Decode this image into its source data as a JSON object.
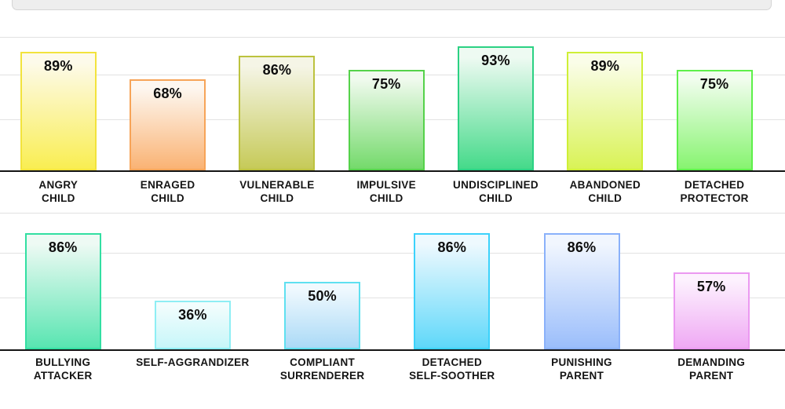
{
  "page": {
    "background": "#ffffff",
    "colors": {
      "axis_line": "#141414",
      "gridline": "#e2e2e2",
      "panel_fill": "#eeeeee",
      "panel_border": "#d5d5d5",
      "label_text": "#141414",
      "value_text": "#0d0d0d"
    }
  },
  "chart_data": [
    {
      "type": "bar",
      "title": "",
      "xlabel": "",
      "ylabel": "",
      "ylim": [
        0,
        100
      ],
      "grid": "horizontal",
      "legend": "none",
      "unit": "%",
      "categories": [
        "ANGRY CHILD",
        "ENRAGED CHILD",
        "VULNERABLE CHILD",
        "IMPULSIVE CHILD",
        "UNDISCIPLINED CHILD",
        "ABANDONED CHILD",
        "DETACHED PROTECTOR"
      ],
      "label_lines": [
        [
          "ANGRY",
          "CHILD"
        ],
        [
          "ENRAGED",
          "CHILD"
        ],
        [
          "VULNERABLE",
          "CHILD"
        ],
        [
          "IMPULSIVE",
          "CHILD"
        ],
        [
          "UNDISCIPLINED",
          "CHILD"
        ],
        [
          "ABANDONED",
          "CHILD"
        ],
        [
          "DETACHED",
          "PROTECTOR"
        ]
      ],
      "values": [
        89,
        68,
        86,
        75,
        93,
        89,
        75
      ],
      "value_labels": [
        "89%",
        "68%",
        "86%",
        "75%",
        "93%",
        "89%",
        "75%"
      ],
      "bar_styles": [
        {
          "border": "#f2e33c",
          "fill_top": "#fdfaea",
          "fill_bottom": "#f9ee52"
        },
        {
          "border": "#f7a458",
          "fill_top": "#fdf7f0",
          "fill_bottom": "#fab374"
        },
        {
          "border": "#bcc23e",
          "fill_top": "#f5f5e6",
          "fill_bottom": "#c6ca58"
        },
        {
          "border": "#55d24a",
          "fill_top": "#f0faee",
          "fill_bottom": "#74da6b"
        },
        {
          "border": "#2bd183",
          "fill_top": "#eefaf2",
          "fill_bottom": "#45da8a"
        },
        {
          "border": "#cfef36",
          "fill_top": "#fafde8",
          "fill_bottom": "#d9f356"
        },
        {
          "border": "#5ef04a",
          "fill_top": "#f1fdee",
          "fill_bottom": "#87f470"
        }
      ]
    },
    {
      "type": "bar",
      "title": "",
      "xlabel": "",
      "ylabel": "",
      "ylim": [
        0,
        100
      ],
      "grid": "horizontal",
      "legend": "none",
      "unit": "%",
      "categories": [
        "BULLYING ATTACKER",
        "SELF-AGGRANDIZER",
        "COMPLIANT SURRENDERER",
        "DETACHED SELF-SOOTHER",
        "PUNISHING PARENT",
        "DEMANDING PARENT"
      ],
      "label_lines": [
        [
          "BULLYING",
          "ATTACKER"
        ],
        [
          "SELF-AGGRANDIZER"
        ],
        [
          "COMPLIANT",
          "SURRENDERER"
        ],
        [
          "DETACHED",
          "SELF-SOOTHER"
        ],
        [
          "PUNISHING",
          "PARENT"
        ],
        [
          "DEMANDING",
          "PARENT"
        ]
      ],
      "values": [
        86,
        36,
        50,
        86,
        86,
        57
      ],
      "value_labels": [
        "86%",
        "36%",
        "50%",
        "86%",
        "86%",
        "57%"
      ],
      "bar_styles": [
        {
          "border": "#32dfa2",
          "fill_top": "#eefaf4",
          "fill_bottom": "#58e5b1"
        },
        {
          "border": "#8eeef4",
          "fill_top": "#f2fdfd",
          "fill_bottom": "#c7f6f9"
        },
        {
          "border": "#5fe0f0",
          "fill_top": "#f0f9fe",
          "fill_bottom": "#abdaf7"
        },
        {
          "border": "#3bd2fb",
          "fill_top": "#eef9fe",
          "fill_bottom": "#5fd8fa"
        },
        {
          "border": "#8ab1fa",
          "fill_top": "#f1f6fe",
          "fill_bottom": "#9bbefb"
        },
        {
          "border": "#eb99f1",
          "fill_top": "#fdf2fe",
          "fill_bottom": "#efa9f4"
        }
      ]
    }
  ]
}
